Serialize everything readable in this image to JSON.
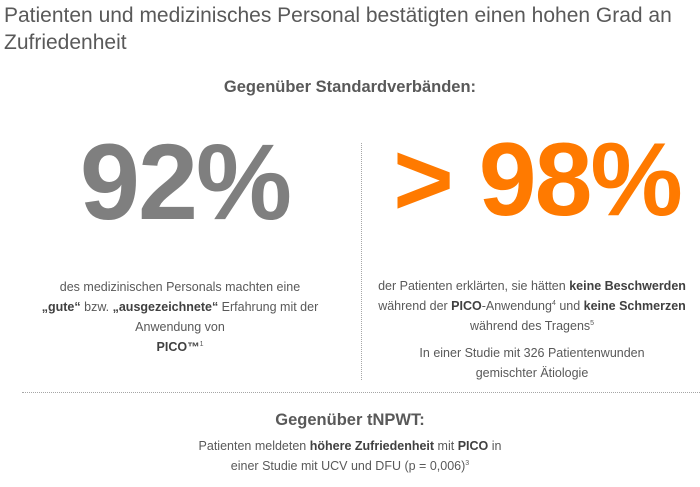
{
  "title": "Patienten und medizinisches Personal bestätigten einen hohen Grad an Zufriedenheit",
  "section_standard": {
    "heading": "Gegenüber Standardverbänden:",
    "left": {
      "big_number": "92%",
      "big_number_color": "#7f7f7f",
      "desc_part1": "des medizinischen Personals machten eine ",
      "desc_bold1": "„gute“",
      "desc_part2": " bzw. ",
      "desc_bold2": "„ausgezeichnete“",
      "desc_part3": " Erfahrung mit der Anwendung von ",
      "desc_bold3": "PICO™",
      "footnote": "1"
    },
    "right": {
      "big_number": "> 98%",
      "big_number_color": "#ff7a00",
      "desc_part1": "der Patienten erklärten, sie hätten ",
      "desc_bold1": "keine Beschwerden",
      "desc_part2": " während der ",
      "desc_bold2": "PICO",
      "desc_part3": "-Anwendung",
      "footnote1": "4",
      "desc_part4": " und ",
      "desc_bold3": "keine Schmerzen",
      "desc_part5": " während des Tragens",
      "footnote2": "5",
      "study_note": "In einer Studie mit 326 Patientenwunden gemischter Ätiologie"
    }
  },
  "section_tnpwt": {
    "heading": "Gegenüber tNPWT:",
    "desc_part1": "Patienten meldeten ",
    "desc_bold1": "höhere Zufriedenheit",
    "desc_part2": " mit ",
    "desc_bold2": "PICO",
    "desc_part3": " in",
    "desc_line2": "einer Studie mit UCV und DFU (p =  0,006)",
    "footnote": "3"
  },
  "colors": {
    "text": "#595959",
    "accent_orange": "#ff7a00",
    "gray_number": "#7f7f7f",
    "divider": "#a6a6a6"
  }
}
